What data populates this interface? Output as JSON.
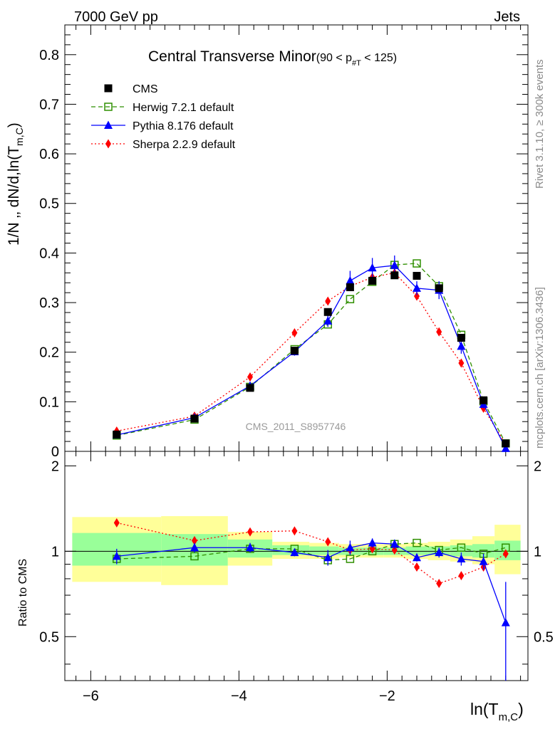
{
  "header": {
    "energy_label": "7000 GeV pp",
    "process_label": "Jets"
  },
  "side_notes": {
    "rivet": "Rivet 3.1.10, ≥ 300k events",
    "mcplots": "mcplots.cern.ch [arXiv:1306.3436]"
  },
  "watermark": "CMS_2011_S8957746",
  "main_ylabel": "1/N ‚‚ dN/d,ln(T",
  "main_ylabel_sub": "m,C",
  "main_ylabel_close": ")",
  "ratio_ylabel": "Ratio to CMS",
  "xlabel": "ln(T",
  "xlabel_sub": "m,C",
  "xlabel_close": ")",
  "colors": {
    "cms": "#000000",
    "herwig": "#2f8f00",
    "pythia": "#0000ff",
    "sherpa": "#ff0000",
    "band_inner": "#99ff99",
    "band_outer": "#ffff99"
  },
  "chart_data": {
    "type": "line",
    "title": "Central Transverse Minor",
    "title_suffix": "(90 < p",
    "title_suffix_sub": "#T",
    "title_suffix_close": " < 125)",
    "x": [
      -5.65,
      -4.6,
      -3.85,
      -3.25,
      -2.8,
      -2.5,
      -2.2,
      -1.9,
      -1.6,
      -1.3,
      -1.0,
      -0.7,
      -0.4
    ],
    "xlim": [
      -6.35,
      -0.1
    ],
    "xticks": [
      "−6",
      "−4",
      "−2"
    ],
    "xtick_values": [
      -6,
      -4,
      -2
    ],
    "main": {
      "ylim": [
        0,
        0.86
      ],
      "yticks": [
        "0",
        "0.1",
        "0.2",
        "0.3",
        "0.4",
        "0.5",
        "0.6",
        "0.7",
        "0.8"
      ],
      "ytick_values": [
        0,
        0.1,
        0.2,
        0.3,
        0.4,
        0.5,
        0.6,
        0.7,
        0.8
      ]
    },
    "ratio": {
      "ylim": [
        0.35,
        2.25
      ],
      "yticks": [
        "0.5",
        "1",
        "2"
      ],
      "ytick_values": [
        0.5,
        1,
        2
      ],
      "bands": [
        {
          "x1": -6.25,
          "x2": -5.05,
          "inner": [
            0.89,
            1.16
          ],
          "outer": [
            0.78,
            1.32
          ]
        },
        {
          "x1": -5.05,
          "x2": -4.15,
          "inner": [
            0.89,
            1.15
          ],
          "outer": [
            0.76,
            1.33
          ]
        },
        {
          "x1": -4.15,
          "x2": -3.55,
          "inner": [
            0.95,
            1.1
          ],
          "outer": [
            0.89,
            1.17
          ]
        },
        {
          "x1": -3.55,
          "x2": -3.05,
          "inner": [
            0.97,
            1.05
          ],
          "outer": [
            0.94,
            1.08
          ]
        },
        {
          "x1": -3.05,
          "x2": -2.65,
          "inner": [
            0.97,
            1.04
          ],
          "outer": [
            0.94,
            1.07
          ]
        },
        {
          "x1": -2.65,
          "x2": -2.35,
          "inner": [
            0.97,
            1.03
          ],
          "outer": [
            0.95,
            1.06
          ]
        },
        {
          "x1": -2.35,
          "x2": -2.05,
          "inner": [
            0.97,
            1.03
          ],
          "outer": [
            0.95,
            1.06
          ]
        },
        {
          "x1": -2.05,
          "x2": -1.75,
          "inner": [
            0.97,
            1.03
          ],
          "outer": [
            0.95,
            1.06
          ]
        },
        {
          "x1": -1.75,
          "x2": -1.45,
          "inner": [
            0.97,
            1.04
          ],
          "outer": [
            0.94,
            1.07
          ]
        },
        {
          "x1": -1.45,
          "x2": -1.15,
          "inner": [
            0.97,
            1.04
          ],
          "outer": [
            0.93,
            1.08
          ]
        },
        {
          "x1": -1.15,
          "x2": -0.85,
          "inner": [
            0.96,
            1.05
          ],
          "outer": [
            0.92,
            1.1
          ]
        },
        {
          "x1": -0.85,
          "x2": -0.55,
          "inner": [
            0.95,
            1.06
          ],
          "outer": [
            0.9,
            1.13
          ]
        },
        {
          "x1": -0.55,
          "x2": -0.2,
          "inner": [
            0.93,
            1.09
          ],
          "outer": [
            0.83,
            1.24
          ]
        }
      ]
    },
    "series": [
      {
        "name": "CMS",
        "key": "cms",
        "marker": "square",
        "values": [
          0.034,
          0.066,
          0.128,
          0.203,
          0.281,
          0.331,
          0.344,
          0.355,
          0.354,
          0.329,
          0.229,
          0.103,
          0.016
        ],
        "ratio": [
          1,
          1,
          1,
          1,
          1,
          1,
          1,
          1,
          1,
          1,
          1,
          1,
          1
        ]
      },
      {
        "name": "Herwig 7.2.1 default",
        "key": "herwig",
        "marker": "open-square",
        "dash": "6,4",
        "values": [
          0.032,
          0.064,
          0.13,
          0.206,
          0.256,
          0.307,
          0.342,
          0.376,
          0.379,
          0.333,
          0.235,
          0.101,
          0.016
        ],
        "ratio": [
          0.94,
          0.96,
          1.02,
          1.02,
          0.93,
          0.94,
          1.0,
          1.06,
          1.07,
          1.01,
          1.03,
          0.98,
          1.03
        ]
      },
      {
        "name": "Pythia 8.176 default",
        "key": "pythia",
        "marker": "triangle",
        "dash": "",
        "values": [
          0.033,
          0.068,
          0.132,
          0.201,
          0.263,
          0.344,
          0.37,
          0.375,
          0.329,
          0.325,
          0.212,
          0.095,
          0.006
        ],
        "errors": [
          0.003,
          0.004,
          0.006,
          0.008,
          0.012,
          0.02,
          0.02,
          0.02,
          0.014,
          0.018,
          0.015,
          0.008,
          0.003
        ],
        "ratio": [
          0.96,
          1.03,
          1.03,
          0.99,
          0.95,
          1.03,
          1.07,
          1.06,
          0.95,
          0.99,
          0.94,
          0.92,
          0.56
        ],
        "ratio_errors": [
          0.06,
          0.04,
          0.04,
          0.03,
          0.06,
          0.06,
          0.04,
          0.04,
          0.03,
          0.04,
          0.05,
          0.06,
          0.22
        ]
      },
      {
        "name": "Sherpa 2.2.9 default",
        "key": "sherpa",
        "marker": "diamond",
        "dash": "2,3",
        "values": [
          0.041,
          0.071,
          0.15,
          0.239,
          0.303,
          0.333,
          0.351,
          0.36,
          0.313,
          0.241,
          0.178,
          0.087,
          0.014
        ],
        "ratio": [
          1.26,
          1.09,
          1.17,
          1.18,
          1.08,
          1.01,
          1.02,
          1.01,
          0.88,
          0.77,
          0.82,
          0.88,
          0.98
        ]
      }
    ]
  }
}
